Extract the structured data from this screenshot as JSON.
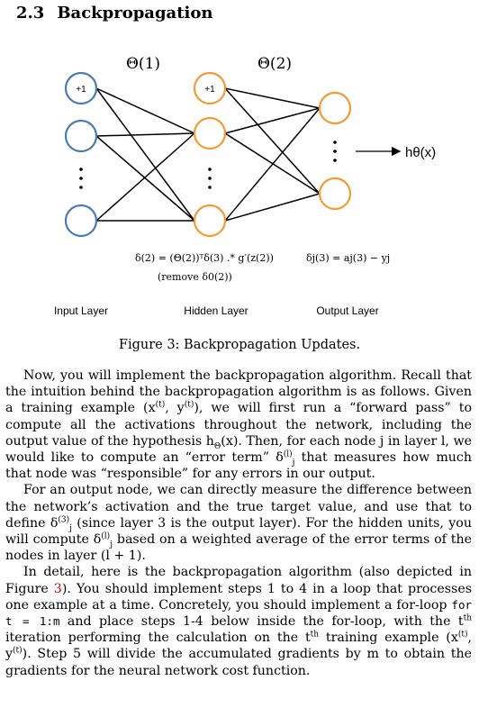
{
  "section": {
    "number": "2.3",
    "title": "Backpropagation"
  },
  "diagram": {
    "theta1": "Θ(1)",
    "theta2": "Θ(2)",
    "bias1": "+1",
    "bias2": "+1",
    "output_label": "hθ(x)",
    "eq_hidden": "δ(2) = (Θ(2))ᵀδ(3) .* g′(z(2))",
    "eq_remove": "(remove δ0(2))",
    "eq_output": "δj(3) = aj(3) − yj",
    "layers": [
      "Input Layer",
      "Hidden Layer",
      "Output Layer"
    ],
    "colors": {
      "input_node": "#4a7ab5",
      "hidden_node": "#f39a34",
      "output_node": "#f39a34",
      "edge": "#000000"
    }
  },
  "caption": "Figure 3: Backpropagation Updates.",
  "paragraphs": {
    "p1": {
      "a": "Now, you will implement the backpropagation algorithm. Recall that the intuition behind the backpropagation algorithm is as follows. Given a training example (x",
      "a_sup1": "(t)",
      "a_mid": ", y",
      "a_sup2": "(t)",
      "b": "), we will first run a “forward pass” to compute all the activations throughout the network, including the output value of the hypothesis h",
      "b_sub": "Θ",
      "c": "(x). Then, for each node j in layer l, we would like to compute an “error term” δ",
      "c_sup": "(l)",
      "c_sub": "j",
      "d": " that measures how much that node was “responsible” for any errors in our output."
    },
    "p2": {
      "a": "For an output node, we can directly measure the difference between the network’s activation and the true target value, and use that to define δ",
      "a_sup": "(3)",
      "a_sub": "j",
      "b": " (since layer 3 is the output layer). For the hidden units, you will compute δ",
      "b_sup": "(l)",
      "b_sub": "j",
      "c": " based on a weighted average of the error terms of the nodes in layer (l + 1)."
    },
    "p3": {
      "a": "In detail, here is the backpropagation algorithm (also depicted in Figure ",
      "ref": "3",
      "b": "). You should implement steps 1 to 4 in a loop that processes one example at a time. Concretely, you should implement a for-loop ",
      "code": "for t = 1:m",
      "c": " and place steps 1-4 below inside the for-loop, with the t",
      "c_sup": "th",
      "d": " iteration performing the calculation on the t",
      "d_sup": "th",
      "e": " training example (x",
      "e_sup1": "(t)",
      "e_mid": ", y",
      "e_sup2": "(t)",
      "f": "). Step 5 will divide the accumulated gradients by m to obtain the gradients for the neural network cost function."
    }
  }
}
